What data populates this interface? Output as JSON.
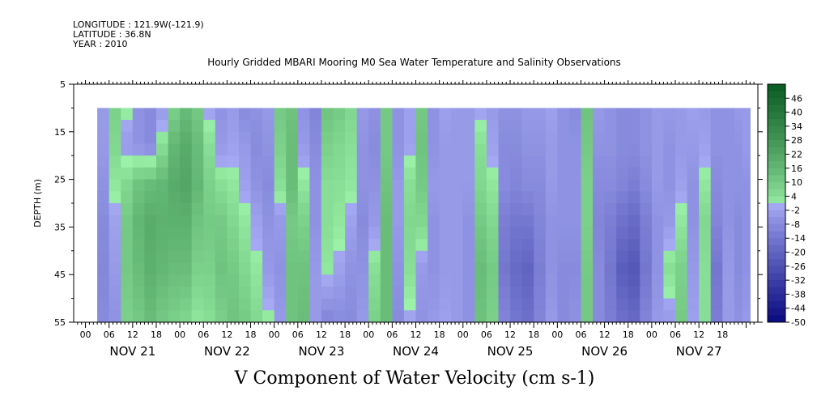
{
  "header": {
    "longitude": "LONGITUDE : 121.9W(-121.9)",
    "latitude": "LATITUDE : 36.8N",
    "year": "YEAR : 2010"
  },
  "chart_data": {
    "type": "heatmap",
    "title": "Hourly Gridded MBARI Mooring M0 Sea Water Temperature and Salinity Observations",
    "bottom_title": "V Component of Water Velocity (cm s-1)",
    "ylabel": "DEPTH (m)",
    "ylim": [
      5,
      55
    ],
    "y_inverted": true,
    "y_ticks": [
      "5",
      "15",
      "25",
      "35",
      "45",
      "55"
    ],
    "x_hour_ticks": [
      "00",
      "06",
      "12",
      "18",
      "00",
      "06",
      "12",
      "18",
      "00",
      "06",
      "12",
      "18",
      "00",
      "06",
      "12",
      "18",
      "00",
      "06",
      "12",
      "18",
      "00",
      "06",
      "12",
      "18",
      "00",
      "06",
      "12",
      "18"
    ],
    "x_days": [
      "NOV 21",
      "NOV 22",
      "NOV 23",
      "NOV 24",
      "NOV 25",
      "NOV 26",
      "NOV 27"
    ],
    "colorbar": {
      "ticks": [
        "46",
        "40",
        "34",
        "28",
        "22",
        "16",
        "10",
        "4",
        "-2",
        "-8",
        "-14",
        "-20",
        "-26",
        "-32",
        "-38",
        "-44",
        "-50"
      ],
      "min": -50,
      "max": 52,
      "step": 3,
      "color_low": "#0a0a80",
      "color_mid_neg": "#a6aaf3",
      "color_mid_pos": "#9cf2a8",
      "color_high": "#0a5a22"
    },
    "data_start": "Nov 21 03:00",
    "data_end": "Nov 27 23:00",
    "depth_top_of_data": 10,
    "columns": [
      {
        "hour": 3,
        "v": [
          -4,
          -4,
          -6,
          -8,
          -9,
          -8
        ]
      },
      {
        "hour": 6,
        "v": [
          8,
          6,
          2,
          -2,
          -4,
          -6
        ]
      },
      {
        "hour": 9,
        "v": [
          2,
          -4,
          6,
          10,
          10,
          8
        ]
      },
      {
        "hour": 12,
        "v": [
          -6,
          -6,
          12,
          16,
          14,
          10
        ]
      },
      {
        "hour": 15,
        "v": [
          -8,
          -8,
          14,
          20,
          18,
          14
        ]
      },
      {
        "hour": 18,
        "v": [
          -4,
          4,
          16,
          18,
          16,
          10
        ]
      },
      {
        "hour": 21,
        "v": [
          8,
          16,
          20,
          18,
          14,
          8
        ]
      },
      {
        "hour": 24,
        "v": [
          14,
          20,
          22,
          18,
          14,
          6
        ]
      },
      {
        "hour": 27,
        "v": [
          10,
          14,
          16,
          12,
          8,
          2
        ]
      },
      {
        "hour": 30,
        "v": [
          -2,
          4,
          8,
          10,
          8,
          4
        ]
      },
      {
        "hour": 33,
        "v": [
          -6,
          -4,
          4,
          10,
          12,
          8
        ]
      },
      {
        "hour": 36,
        "v": [
          -4,
          -2,
          2,
          6,
          10,
          12
        ]
      },
      {
        "hour": 39,
        "v": [
          -8,
          -4,
          -2,
          2,
          6,
          10
        ]
      },
      {
        "hour": 42,
        "v": [
          -6,
          -8,
          -6,
          -2,
          2,
          6
        ]
      },
      {
        "hour": 45,
        "v": [
          -4,
          -6,
          -8,
          -6,
          -4,
          2
        ]
      },
      {
        "hour": 48,
        "v": [
          10,
          8,
          4,
          -4,
          -6,
          -4
        ]
      },
      {
        "hour": 51,
        "v": [
          12,
          14,
          14,
          10,
          12,
          12
        ]
      },
      {
        "hour": 54,
        "v": [
          -6,
          -4,
          2,
          8,
          12,
          14
        ]
      },
      {
        "hour": 57,
        "v": [
          -10,
          -8,
          -6,
          -6,
          -4,
          -4
        ]
      },
      {
        "hour": 60,
        "v": [
          12,
          8,
          4,
          4,
          2,
          -10
        ]
      },
      {
        "hour": 63,
        "v": [
          10,
          6,
          4,
          2,
          -2,
          -8
        ]
      },
      {
        "hour": 66,
        "v": [
          6,
          4,
          2,
          -2,
          -6,
          -8
        ]
      },
      {
        "hour": 69,
        "v": [
          -4,
          -6,
          -6,
          -8,
          -6,
          -4
        ]
      },
      {
        "hour": 72,
        "v": [
          -6,
          -8,
          -6,
          -4,
          4,
          8
        ]
      },
      {
        "hour": 75,
        "v": [
          10,
          10,
          12,
          14,
          14,
          14
        ]
      },
      {
        "hour": 78,
        "v": [
          -6,
          -6,
          -4,
          -4,
          -6,
          -8
        ]
      },
      {
        "hour": 81,
        "v": [
          -2,
          -2,
          4,
          6,
          4,
          -2
        ]
      },
      {
        "hour": 84,
        "v": [
          10,
          12,
          10,
          6,
          -4,
          -6
        ]
      },
      {
        "hour": 87,
        "v": [
          -6,
          -6,
          -4,
          -6,
          -6,
          -4
        ]
      },
      {
        "hour": 90,
        "v": [
          -2,
          -4,
          -4,
          -4,
          -4,
          -2
        ]
      },
      {
        "hour": 93,
        "v": [
          -4,
          -4,
          -4,
          -4,
          -4,
          -4
        ]
      },
      {
        "hour": 96,
        "v": [
          -4,
          -4,
          -4,
          -6,
          -6,
          -6
        ]
      },
      {
        "hour": 99,
        "v": [
          -2,
          4,
          6,
          10,
          14,
          12
        ]
      },
      {
        "hour": 102,
        "v": [
          -4,
          -2,
          2,
          6,
          10,
          8
        ]
      },
      {
        "hour": 105,
        "v": [
          -6,
          -8,
          -8,
          -12,
          -14,
          -10
        ]
      },
      {
        "hour": 108,
        "v": [
          -6,
          -8,
          -10,
          -14,
          -18,
          -14
        ]
      },
      {
        "hour": 111,
        "v": [
          -4,
          -6,
          -8,
          -14,
          -20,
          -16
        ]
      },
      {
        "hour": 114,
        "v": [
          -4,
          -6,
          -8,
          -10,
          -12,
          -10
        ]
      },
      {
        "hour": 117,
        "v": [
          -2,
          -4,
          -4,
          -6,
          -6,
          -4
        ]
      },
      {
        "hour": 120,
        "v": [
          -6,
          -6,
          -6,
          -6,
          -8,
          -8
        ]
      },
      {
        "hour": 123,
        "v": [
          -8,
          -6,
          -6,
          -6,
          -8,
          -6
        ]
      },
      {
        "hour": 126,
        "v": [
          12,
          10,
          8,
          8,
          10,
          10
        ]
      },
      {
        "hour": 129,
        "v": [
          -4,
          -6,
          -8,
          -10,
          -8,
          -8
        ]
      },
      {
        "hour": 132,
        "v": [
          -6,
          -6,
          -8,
          -12,
          -14,
          -12
        ]
      },
      {
        "hour": 135,
        "v": [
          -8,
          -8,
          -10,
          -16,
          -22,
          -16
        ]
      },
      {
        "hour": 138,
        "v": [
          -8,
          -8,
          -12,
          -18,
          -24,
          -18
        ]
      },
      {
        "hour": 141,
        "v": [
          -6,
          -6,
          -8,
          -12,
          -14,
          -10
        ]
      },
      {
        "hour": 144,
        "v": [
          -4,
          -4,
          -4,
          -6,
          -6,
          -4
        ]
      },
      {
        "hour": 147,
        "v": [
          -4,
          -6,
          -6,
          -4,
          4,
          -4
        ]
      },
      {
        "hour": 150,
        "v": [
          -4,
          -4,
          -2,
          2,
          8,
          10
        ]
      },
      {
        "hour": 153,
        "v": [
          -2,
          -4,
          -6,
          -6,
          -4,
          -2
        ]
      },
      {
        "hour": 156,
        "v": [
          -4,
          -2,
          2,
          6,
          4,
          4
        ]
      },
      {
        "hour": 159,
        "v": [
          -6,
          -6,
          -8,
          -10,
          -14,
          -12
        ]
      },
      {
        "hour": 162,
        "v": [
          -6,
          -6,
          -6,
          -6,
          -4,
          -4
        ]
      },
      {
        "hour": 165,
        "v": [
          -4,
          -6,
          -6,
          -8,
          -8,
          -6
        ]
      },
      {
        "hour": 167,
        "v": [
          -4,
          -4,
          -6,
          -6,
          -6,
          -4
        ]
      }
    ]
  }
}
